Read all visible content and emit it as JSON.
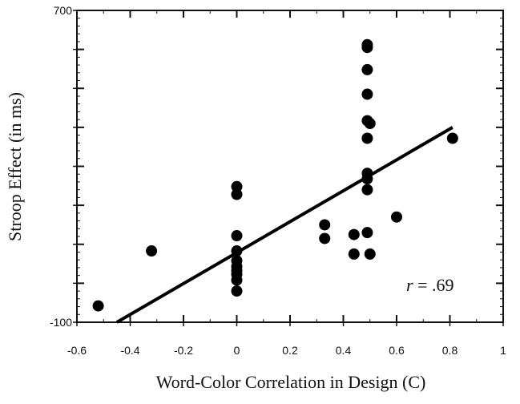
{
  "chart_data": {
    "type": "scatter",
    "title": "",
    "xlabel": "Word-Color Correlation in Design (C)",
    "ylabel": "Stroop Effect (in ms)",
    "xlim": [
      -0.6,
      1
    ],
    "ylim": [
      -100,
      700
    ],
    "x_ticks": [
      "-0.6",
      "-0.4",
      "-0.2",
      "0",
      "0.2",
      "0.4",
      "0.6",
      "0.8",
      "1"
    ],
    "y_tick_labels": [
      "700",
      "-100"
    ],
    "y_tick_values": [
      -100,
      0,
      100,
      200,
      300,
      400,
      500,
      600,
      700
    ],
    "annotation": {
      "r_symbol": "r",
      "r_value": " = .69"
    },
    "points": [
      {
        "x": -0.52,
        "y": -58
      },
      {
        "x": -0.32,
        "y": 83
      },
      {
        "x": 0.0,
        "y": 248
      },
      {
        "x": 0.0,
        "y": 228
      },
      {
        "x": 0.0,
        "y": 122
      },
      {
        "x": 0.0,
        "y": 83
      },
      {
        "x": 0.0,
        "y": 58
      },
      {
        "x": 0.0,
        "y": 43
      },
      {
        "x": 0.0,
        "y": 33
      },
      {
        "x": 0.0,
        "y": 23
      },
      {
        "x": 0.0,
        "y": 8
      },
      {
        "x": 0.0,
        "y": -20
      },
      {
        "x": 0.33,
        "y": 150
      },
      {
        "x": 0.33,
        "y": 115
      },
      {
        "x": 0.44,
        "y": 125
      },
      {
        "x": 0.44,
        "y": 75
      },
      {
        "x": 0.49,
        "y": 130
      },
      {
        "x": 0.5,
        "y": 75
      },
      {
        "x": 0.49,
        "y": 612
      },
      {
        "x": 0.49,
        "y": 605
      },
      {
        "x": 0.49,
        "y": 548
      },
      {
        "x": 0.49,
        "y": 485
      },
      {
        "x": 0.49,
        "y": 417
      },
      {
        "x": 0.5,
        "y": 410
      },
      {
        "x": 0.49,
        "y": 372
      },
      {
        "x": 0.49,
        "y": 282
      },
      {
        "x": 0.49,
        "y": 268
      },
      {
        "x": 0.49,
        "y": 240
      },
      {
        "x": 0.6,
        "y": 170
      },
      {
        "x": 0.81,
        "y": 372
      }
    ],
    "fit_line": {
      "x": [
        -0.45,
        0.81
      ],
      "y": [
        -100,
        400
      ]
    },
    "grid": false,
    "legend": "none"
  }
}
